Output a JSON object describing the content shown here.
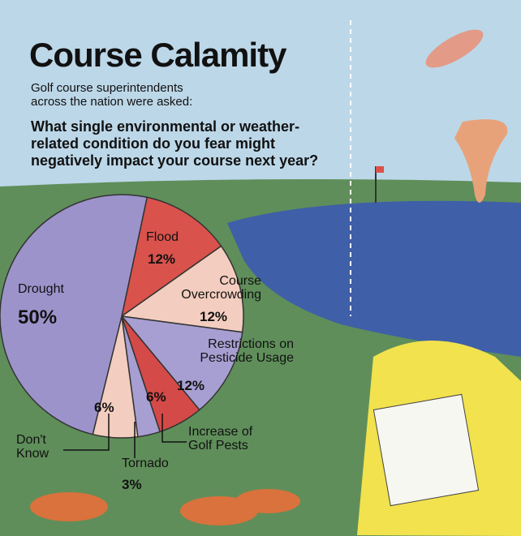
{
  "chart_data": {
    "type": "pie",
    "title": "Course Calamity",
    "subtitle": "Golf course superintendents across the nation were asked:",
    "question": "What single environmental or weather-related condition do you fear might negatively impact your course next year?",
    "categories": [
      "Flood",
      "Course Overcrowding",
      "Restrictions on Pesticide Usage",
      "Increase of Golf Pests",
      "Tornado",
      "Don't Know",
      "Drought"
    ],
    "values": [
      12,
      12,
      12,
      6,
      3,
      6,
      50
    ],
    "value_labels": [
      "12%",
      "12%",
      "12%",
      "6%",
      "3%",
      "6%",
      "50%"
    ],
    "colors": [
      "#d9524c",
      "#f3cdbf",
      "#a79fd2",
      "#d44a48",
      "#a79fd2",
      "#f3cdbf",
      "#9d93cb"
    ]
  }
}
